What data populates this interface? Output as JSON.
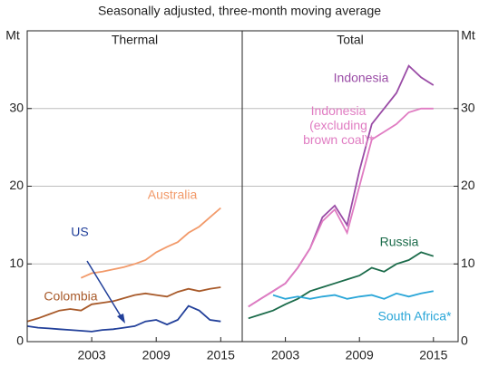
{
  "chart_data": [
    {
      "type": "line",
      "subtitle": "Seasonally adjusted, three-month moving average",
      "title": "Thermal",
      "y_label": "Mt",
      "x": [
        1997,
        1998,
        1999,
        2000,
        2001,
        2002,
        2003,
        2004,
        2005,
        2006,
        2007,
        2008,
        2009,
        2010,
        2011,
        2012,
        2013,
        2014,
        2015
      ],
      "xlim": [
        1997,
        2017
      ],
      "xticks": [
        2003,
        2009,
        2015
      ],
      "ylim": [
        0,
        40
      ],
      "yticks": [
        0,
        10,
        20,
        30
      ],
      "grid": true,
      "series": [
        {
          "name": "US",
          "color": "#22409a",
          "values": [
            2.0,
            1.8,
            1.7,
            1.6,
            1.5,
            1.4,
            1.3,
            1.5,
            1.6,
            1.8,
            2.0,
            2.6,
            2.8,
            2.2,
            2.8,
            4.6,
            4.0,
            2.8,
            2.6
          ]
        },
        {
          "name": "Colombia",
          "color": "#a85a2a",
          "values": [
            2.6,
            3.0,
            3.5,
            4.0,
            4.2,
            4.0,
            4.8,
            5.0,
            5.2,
            5.6,
            6.0,
            6.2,
            6.0,
            5.8,
            6.4,
            6.8,
            6.5,
            6.8,
            7.0
          ]
        },
        {
          "name": "Australia",
          "color": "#f29a6a",
          "values": [
            null,
            null,
            null,
            null,
            null,
            8.2,
            8.8,
            9.0,
            9.3,
            9.6,
            10.0,
            10.5,
            11.5,
            12.2,
            12.8,
            14.0,
            14.8,
            16.0,
            17.2
          ]
        }
      ]
    },
    {
      "type": "line",
      "title": "Total",
      "y_label": "Mt",
      "x": [
        2000,
        2001,
        2002,
        2003,
        2004,
        2005,
        2006,
        2007,
        2008,
        2009,
        2010,
        2011,
        2012,
        2013,
        2014,
        2015
      ],
      "xlim": [
        1999.5,
        2017
      ],
      "xticks": [
        2003,
        2009,
        2015
      ],
      "ylim": [
        0,
        40
      ],
      "yticks": [
        0,
        10,
        20,
        30
      ],
      "grid": true,
      "series": [
        {
          "name": "Indonesia",
          "color": "#9a4ca6",
          "values": [
            4.5,
            5.5,
            6.5,
            7.5,
            9.5,
            12,
            16,
            17.5,
            15,
            22,
            28,
            30,
            32,
            35.5,
            34,
            33
          ]
        },
        {
          "name": "Indonesia\n(excluding\nbrown coal)*",
          "color": "#e07cc2",
          "values": [
            4.5,
            5.5,
            6.5,
            7.5,
            9.5,
            12,
            15.5,
            17,
            14,
            20,
            26,
            27,
            28,
            29.5,
            30,
            30
          ]
        },
        {
          "name": "Russia",
          "color": "#1b6b4a",
          "values": [
            3,
            3.5,
            4,
            4.8,
            5.5,
            6.5,
            7,
            7.5,
            8,
            8.5,
            9.5,
            9,
            10,
            10.5,
            11.5,
            11
          ]
        },
        {
          "name": "South Africa*",
          "color": "#2aa6d8",
          "values": [
            null,
            null,
            6.0,
            5.5,
            5.8,
            5.5,
            5.8,
            6.0,
            5.5,
            5.8,
            6.0,
            5.5,
            6.2,
            5.8,
            6.2,
            6.5
          ]
        }
      ]
    }
  ]
}
